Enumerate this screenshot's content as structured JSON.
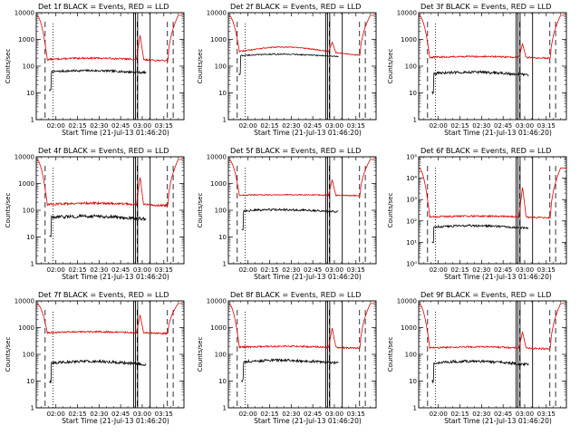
{
  "figure": {
    "description_free": true,
    "ylabel": "Counts/sec",
    "xlabel": "Start Time (21-Jul-13 01:46:20)",
    "x_tick_labels": [
      "02:00",
      "02:15",
      "02:30",
      "02:45",
      "03:00",
      "03:15"
    ],
    "x_tick_minutes": [
      120,
      135,
      150,
      165,
      180,
      195
    ],
    "x_range_minutes": [
      106.33,
      209.0
    ],
    "dashed_vlines_minutes": [
      112.5,
      176.5,
      197.5,
      201.5
    ],
    "dotted_vlines_minutes": [
      118.0
    ],
    "solid_vlines_minutes": [
      174.0,
      175.3,
      176.8,
      185.5
    ],
    "panel_title_prefix": "Det ",
    "panel_title_suffix": " BLACK = Events, RED = LLD",
    "colors": {
      "events": "#000000",
      "lld": "#e00000",
      "axes": "#000000"
    }
  },
  "chart_data": [
    {
      "type": "line",
      "title": "Det 1f BLACK = Events, RED = LLD",
      "detector": "1f",
      "ylabel": "Counts/sec",
      "xlabel": "Start Time (21-Jul-13 01:46:20)",
      "y_scale": "log",
      "ylim": [
        1,
        10000
      ],
      "y_tick_labels": [
        "1",
        "10",
        "100",
        "1000",
        "10000"
      ],
      "series": [
        {
          "name": "Events",
          "color": "#000000",
          "start": 115.5,
          "end": 183.0,
          "base": [
            55,
            68
          ],
          "noise": 0.04
        },
        {
          "name": "LLD",
          "color": "#e00000",
          "base": [
            160,
            200
          ],
          "noise": 0.03,
          "peak": 8000,
          "spike": 1500
        }
      ]
    },
    {
      "type": "line",
      "title": "Det 2f BLACK = Events, RED = LLD",
      "detector": "2f",
      "ylabel": "Counts/sec",
      "xlabel": "Start Time (21-Jul-13 01:46:20)",
      "y_scale": "log",
      "ylim": [
        1,
        10000
      ],
      "y_tick_labels": [
        "1",
        "10",
        "100",
        "1000",
        "10000"
      ],
      "series": [
        {
          "name": "Events",
          "color": "#000000",
          "start": 113.5,
          "end": 183.0,
          "base": [
            220,
            280
          ],
          "noise": 0.02
        },
        {
          "name": "LLD",
          "color": "#e00000",
          "base": [
            250,
            520
          ],
          "noise": 0.02,
          "peak": 8000,
          "spike": 800
        }
      ]
    },
    {
      "type": "line",
      "title": "Det 3f BLACK = Events, RED = LLD",
      "detector": "3f",
      "ylabel": "Counts/sec",
      "xlabel": "Start Time (21-Jul-13 01:46:20)",
      "y_scale": "log",
      "ylim": [
        1,
        10000
      ],
      "y_tick_labels": [
        "1",
        "10",
        "100",
        "1000",
        "10000"
      ],
      "series": [
        {
          "name": "Events",
          "color": "#000000",
          "start": 115.5,
          "end": 183.0,
          "base": [
            45,
            60
          ],
          "noise": 0.05
        },
        {
          "name": "LLD",
          "color": "#e00000",
          "base": [
            200,
            230
          ],
          "noise": 0.03,
          "peak": 8000,
          "spike": 700
        }
      ]
    },
    {
      "type": "line",
      "title": "Det 4f BLACK = Events, RED = LLD",
      "detector": "4f",
      "ylabel": "Counts/sec",
      "xlabel": "Start Time (21-Jul-13 01:46:20)",
      "y_scale": "log",
      "ylim": [
        1,
        10000
      ],
      "y_tick_labels": [
        "1",
        "10",
        "100",
        "1000",
        "10000"
      ],
      "series": [
        {
          "name": "Events",
          "color": "#000000",
          "start": 115.5,
          "end": 183.0,
          "base": [
            45,
            60
          ],
          "noise": 0.06
        },
        {
          "name": "LLD",
          "color": "#e00000",
          "base": [
            150,
            185
          ],
          "noise": 0.04,
          "peak": 8000,
          "spike": 1800
        }
      ]
    },
    {
      "type": "line",
      "title": "Det 5f BLACK = Events, RED = LLD",
      "detector": "5f",
      "ylabel": "Counts/sec",
      "xlabel": "Start Time (21-Jul-13 01:46:20)",
      "y_scale": "log",
      "ylim": [
        1,
        10000
      ],
      "y_tick_labels": [
        "1",
        "10",
        "100",
        "1000",
        "10000"
      ],
      "series": [
        {
          "name": "Events",
          "color": "#000000",
          "start": 115.5,
          "end": 183.0,
          "base": [
            85,
            105
          ],
          "noise": 0.04
        },
        {
          "name": "LLD",
          "color": "#e00000",
          "base": [
            350,
            380
          ],
          "noise": 0.02,
          "peak": 8000,
          "spike": 1400
        }
      ]
    },
    {
      "type": "line",
      "title": "Det 6f BLACK = Events, RED = LLD",
      "detector": "6f",
      "ylabel": "Counts/sec",
      "xlabel": "Start Time (21-Jul-13 01:46:20)",
      "y_scale": "log",
      "ylim": [
        1,
        100000
      ],
      "y_tick_labels": [
        "10⁰",
        "10¹",
        "10²",
        "10³",
        "10⁴",
        "10⁵"
      ],
      "series": [
        {
          "name": "Events",
          "color": "#000000",
          "start": 115.5,
          "end": 183.0,
          "base": [
            45,
            60
          ],
          "noise": 0.05
        },
        {
          "name": "LLD",
          "color": "#e00000",
          "base": [
            140,
            170
          ],
          "noise": 0.04,
          "peak": 30000,
          "spike": 4000
        }
      ]
    },
    {
      "type": "line",
      "title": "Det 7f BLACK = Events, RED = LLD",
      "detector": "7f",
      "ylabel": "Counts/sec",
      "xlabel": "Start Time (21-Jul-13 01:46:20)",
      "y_scale": "log",
      "ylim": [
        1,
        10000
      ],
      "y_tick_labels": [
        "1",
        "10",
        "100",
        "1000",
        "10000"
      ],
      "series": [
        {
          "name": "Events",
          "color": "#000000",
          "start": 115.5,
          "end": 183.0,
          "base": [
            40,
            55
          ],
          "noise": 0.05
        },
        {
          "name": "LLD",
          "color": "#e00000",
          "base": [
            600,
            700
          ],
          "noise": 0.03,
          "peak": 8000,
          "spike": 3000
        }
      ]
    },
    {
      "type": "line",
      "title": "Det 8f BLACK = Events, RED = LLD",
      "detector": "8f",
      "ylabel": "Counts/sec",
      "xlabel": "Start Time (21-Jul-13 01:46:20)",
      "y_scale": "log",
      "ylim": [
        1,
        10000
      ],
      "y_tick_labels": [
        "1",
        "10",
        "100",
        "1000",
        "10000"
      ],
      "series": [
        {
          "name": "Events",
          "color": "#000000",
          "start": 115.5,
          "end": 183.0,
          "base": [
            45,
            60
          ],
          "noise": 0.05
        },
        {
          "name": "LLD",
          "color": "#e00000",
          "base": [
            170,
            200
          ],
          "noise": 0.03,
          "peak": 8000,
          "spike": 1000
        }
      ]
    },
    {
      "type": "line",
      "title": "Det 9f BLACK = Events, RED = LLD",
      "detector": "9f",
      "ylabel": "Counts/sec",
      "xlabel": "Start Time (21-Jul-13 01:46:20)",
      "y_scale": "log",
      "ylim": [
        1,
        10000
      ],
      "y_tick_labels": [
        "1",
        "10",
        "100",
        "1000",
        "10000"
      ],
      "series": [
        {
          "name": "Events",
          "color": "#000000",
          "start": 115.5,
          "end": 183.0,
          "base": [
            40,
            55
          ],
          "noise": 0.05
        },
        {
          "name": "LLD",
          "color": "#e00000",
          "base": [
            160,
            190
          ],
          "noise": 0.03,
          "peak": 8000,
          "spike": 700
        }
      ]
    }
  ]
}
